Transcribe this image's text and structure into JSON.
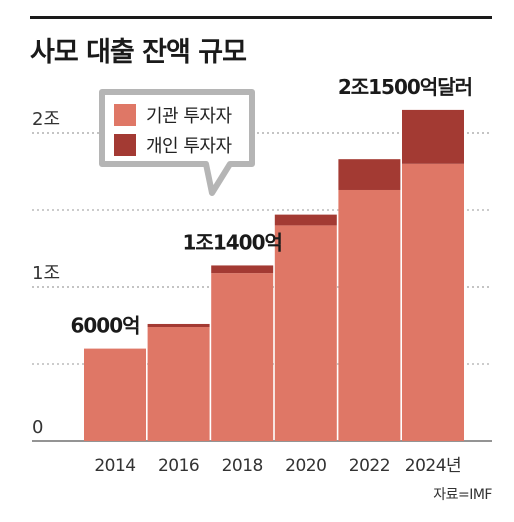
{
  "title": "사모 대출 잔액 규모",
  "source": "자료=IMF",
  "chart_data": {
    "type": "bar",
    "stacked": true,
    "title": "사모 대출 잔액 규모",
    "categories": [
      "2014",
      "2016",
      "2018",
      "2020",
      "2022",
      "2024년"
    ],
    "series": [
      {
        "name": "기관 투자자",
        "color": "#df7766",
        "values": [
          0.6,
          0.74,
          1.09,
          1.4,
          1.63,
          1.8
        ]
      },
      {
        "name": "개인 투자자",
        "color": "#a33a33",
        "values": [
          0.0,
          0.02,
          0.05,
          0.07,
          0.2,
          0.35
        ]
      }
    ],
    "yticks": [
      {
        "value": 0,
        "label": "0"
      },
      {
        "value": 1,
        "label": "1조"
      },
      {
        "value": 2,
        "label": "2조"
      }
    ],
    "ylim": [
      0,
      2.2
    ],
    "grid": true,
    "legend_position": "top-left",
    "annotations": [
      {
        "category_index": 0,
        "text": "6000억"
      },
      {
        "category_index": 2,
        "text": "1조1400억"
      },
      {
        "category_index": 5,
        "text": "2조1500억달러"
      }
    ]
  }
}
